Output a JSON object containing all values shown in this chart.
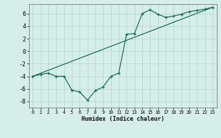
{
  "xlabel": "Humidex (Indice chaleur)",
  "bg_color": "#d6eeea",
  "grid_color": "#b8d8d2",
  "line_color": "#1a6b5a",
  "curve1_x": [
    0,
    1,
    2,
    3,
    4,
    5,
    6,
    7,
    8,
    9,
    10,
    11,
    12,
    13,
    14,
    15,
    16,
    17,
    18,
    19,
    20,
    21,
    22,
    23
  ],
  "curve1_y": [
    -4.0,
    -3.7,
    -3.5,
    -4.0,
    -4.0,
    -6.2,
    -6.5,
    -7.8,
    -6.3,
    -5.7,
    -4.0,
    -3.5,
    2.7,
    2.8,
    6.0,
    6.6,
    5.9,
    5.4,
    5.6,
    5.9,
    6.3,
    6.5,
    6.7,
    7.0
  ],
  "curve2_x": [
    0,
    23
  ],
  "curve2_y": [
    -4.0,
    7.0
  ],
  "xlim": [
    -0.5,
    23.5
  ],
  "ylim": [
    -9,
    7.5
  ],
  "yticks": [
    -8,
    -6,
    -4,
    -2,
    0,
    2,
    4,
    6
  ],
  "xticks": [
    0,
    1,
    2,
    3,
    4,
    5,
    6,
    7,
    8,
    9,
    10,
    11,
    12,
    13,
    14,
    15,
    16,
    17,
    18,
    19,
    20,
    21,
    22,
    23
  ],
  "xlabel_fontsize": 6.0,
  "tick_fontsize_x": 4.8,
  "tick_fontsize_y": 6.0
}
